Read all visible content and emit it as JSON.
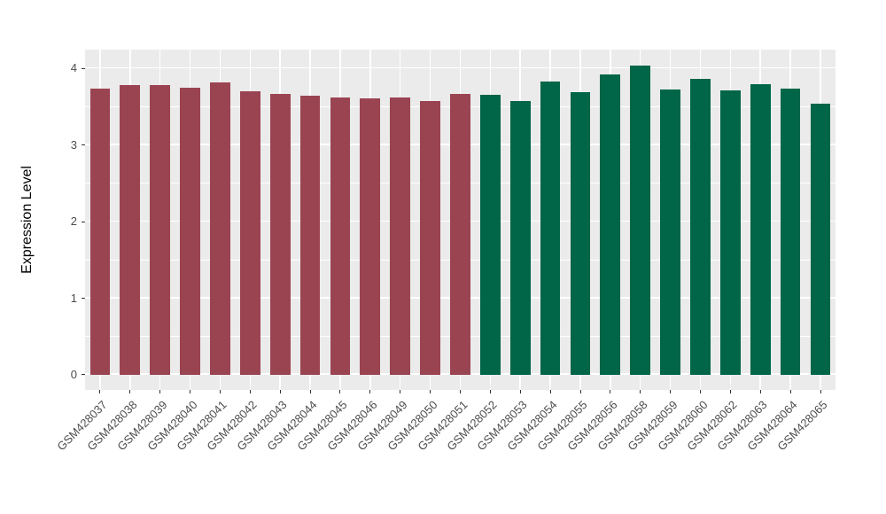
{
  "chart_data": {
    "type": "bar",
    "title": "",
    "xlabel": "",
    "ylabel": "Expression Level",
    "legend_position": "none",
    "grid": "on",
    "panel_background": "#EBEBEB",
    "grid_color": "#FFFFFF",
    "tick_color": "#333333",
    "tick_label_color": "#4D4D4D",
    "ylim": [
      -0.2,
      4.25
    ],
    "yticks": [
      0,
      1,
      2,
      3,
      4
    ],
    "minor_gridlines": [
      0.5,
      1.5,
      2.5,
      3.5
    ],
    "bar_color_group1": "#9B4451",
    "bar_color_group2": "#006647",
    "categories": [
      "GSM428037",
      "GSM428038",
      "GSM428039",
      "GSM428040",
      "GSM428041",
      "GSM428042",
      "GSM428043",
      "GSM428044",
      "GSM428045",
      "GSM428046",
      "GSM428049",
      "GSM428050",
      "GSM428051",
      "GSM428052",
      "GSM428053",
      "GSM428054",
      "GSM428055",
      "GSM428056",
      "GSM428058",
      "GSM428059",
      "GSM428060",
      "GSM428062",
      "GSM428063",
      "GSM428064",
      "GSM428065"
    ],
    "values": [
      3.74,
      3.78,
      3.78,
      3.75,
      3.82,
      3.7,
      3.67,
      3.64,
      3.62,
      3.61,
      3.62,
      3.58,
      3.67,
      3.66,
      3.57,
      3.83,
      3.69,
      3.92,
      4.04,
      3.73,
      3.86,
      3.71,
      3.79,
      3.74,
      3.54
    ],
    "colors": [
      "#9B4451",
      "#9B4451",
      "#9B4451",
      "#9B4451",
      "#9B4451",
      "#9B4451",
      "#9B4451",
      "#9B4451",
      "#9B4451",
      "#9B4451",
      "#9B4451",
      "#9B4451",
      "#9B4451",
      "#006647",
      "#006647",
      "#006647",
      "#006647",
      "#006647",
      "#006647",
      "#006647",
      "#006647",
      "#006647",
      "#006647",
      "#006647",
      "#006647"
    ]
  }
}
